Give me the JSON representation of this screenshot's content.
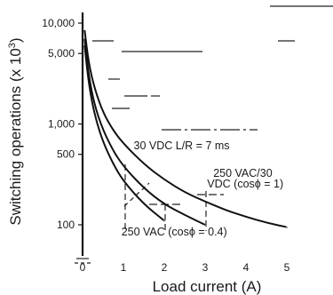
{
  "chart_data": {
    "type": "line",
    "xlabel": "Load current (A)",
    "ylabel": "Switching operations (x 10³)",
    "ylabel_main": "Switching operations (x 10",
    "ylabel_sup": "3",
    "ylabel_end": ")",
    "y_scale": "log",
    "x_ticks": [
      0,
      1,
      2,
      3,
      4,
      5
    ],
    "y_ticks": [
      {
        "value": 100,
        "label": "100"
      },
      {
        "value": 500,
        "label": "500"
      },
      {
        "value": 1000,
        "label": "1,000"
      },
      {
        "value": 5000,
        "label": "5,000"
      },
      {
        "value": 10000,
        "label": "10,000"
      }
    ],
    "xlim": [
      0,
      5.4
    ],
    "ylim": [
      60,
      12000
    ],
    "grid": false,
    "series": [
      {
        "x": [
          0.05,
          0.15,
          0.3,
          0.5,
          0.75,
          1,
          1.5,
          2,
          2.5,
          3,
          3.5,
          4,
          4.5,
          5
        ],
        "y": [
          8500,
          4000,
          2200,
          1300,
          860,
          640,
          400,
          280,
          210,
          170,
          140,
          120,
          105,
          95
        ]
      },
      {
        "x": [
          0.05,
          0.15,
          0.3,
          0.5,
          0.75,
          1,
          1.5,
          2,
          2.5,
          3
        ],
        "y": [
          7000,
          3000,
          1500,
          870,
          540,
          380,
          230,
          160,
          125,
          100
        ]
      },
      {
        "x": [
          0.05,
          0.15,
          0.3,
          0.5,
          0.75,
          1,
          1.5,
          2
        ],
        "y": [
          6000,
          2500,
          1200,
          660,
          400,
          270,
          160,
          110
        ]
      }
    ],
    "annotations": [
      {
        "text": "30 VDC L/R = 7 ms",
        "x": 1.25,
        "y": 560
      },
      {
        "text": "250 VAC/30",
        "x": 3.2,
        "y": 300
      },
      {
        "text": "VDC (cosϕ = 1)",
        "x": 3.05,
        "y": 235
      },
      {
        "text": "250 VAC (cosϕ = 0.4)",
        "x": 0.95,
        "y": 78
      }
    ]
  }
}
